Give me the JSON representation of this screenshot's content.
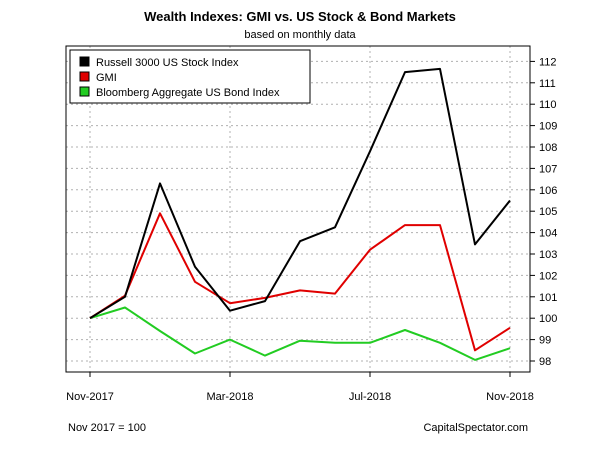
{
  "chart_data": {
    "type": "line",
    "title": "Wealth Indexes: GMI vs. US Stock & Bond Markets",
    "subtitle": "based on monthly data",
    "x": [
      "Nov-2017",
      "Dec-2017",
      "Jan-2018",
      "Feb-2018",
      "Mar-2018",
      "Apr-2018",
      "May-2018",
      "Jun-2018",
      "Jul-2018",
      "Aug-2018",
      "Sep-2018",
      "Oct-2018",
      "Nov-2018"
    ],
    "x_tick_labels": [
      "Nov-2017",
      "Mar-2018",
      "Jul-2018",
      "Nov-2018"
    ],
    "y_tick_labels": [
      98,
      99,
      100,
      101,
      102,
      103,
      104,
      105,
      106,
      107,
      108,
      109,
      110,
      111,
      112
    ],
    "ylim": [
      97.5,
      112.5
    ],
    "y_axis_side": "right",
    "grid": true,
    "legend_position": "top-left",
    "series": [
      {
        "name": "Russell 3000 US Stock Index",
        "color": "#000000",
        "values": [
          100.0,
          101.0,
          106.3,
          102.4,
          100.35,
          100.8,
          103.6,
          104.25,
          107.8,
          111.5,
          111.65,
          103.45,
          105.5
        ]
      },
      {
        "name": "GMI",
        "color": "#e00000",
        "values": [
          100.0,
          101.05,
          104.9,
          101.7,
          100.7,
          100.95,
          101.3,
          101.15,
          103.2,
          104.35,
          104.35,
          98.5,
          99.55
        ]
      },
      {
        "name": "Bloomberg Aggregate US Bond Index",
        "color": "#22cc22",
        "values": [
          100.0,
          100.5,
          99.4,
          98.35,
          99.0,
          98.25,
          98.95,
          98.85,
          98.85,
          99.45,
          98.85,
          98.05,
          98.6
        ]
      }
    ]
  },
  "footnote_left": "Nov 2017 = 100",
  "footnote_right": "CapitalSpectator.com"
}
